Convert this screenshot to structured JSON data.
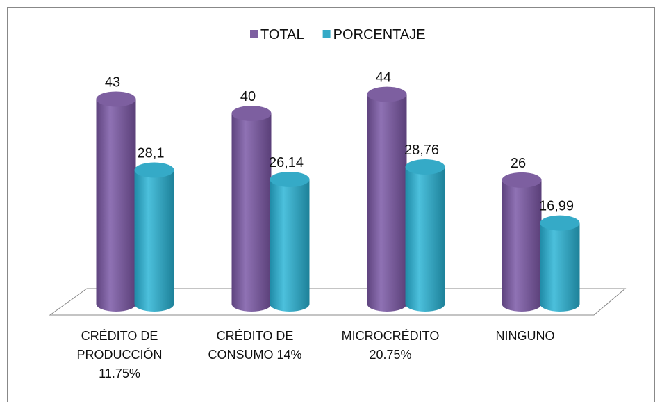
{
  "chart_data": {
    "type": "bar3d",
    "categories": [
      "CRÉDITO DE PRODUCCIÓN 11.75%",
      "CRÉDITO DE CONSUMO 14%",
      "MICROCRÉDITO 20.75%",
      "NINGUNO"
    ],
    "series": [
      {
        "name": "TOTAL",
        "color": "#7d5fa0",
        "values": [
          43,
          40,
          44,
          26
        ]
      },
      {
        "name": "PORCENTAJE",
        "color": "#35aac7",
        "values": [
          28.1,
          26.14,
          28.76,
          16.99
        ],
        "value_labels": [
          "28,1",
          "26,14",
          "28,76",
          "16,99"
        ]
      }
    ],
    "legend": "top"
  }
}
